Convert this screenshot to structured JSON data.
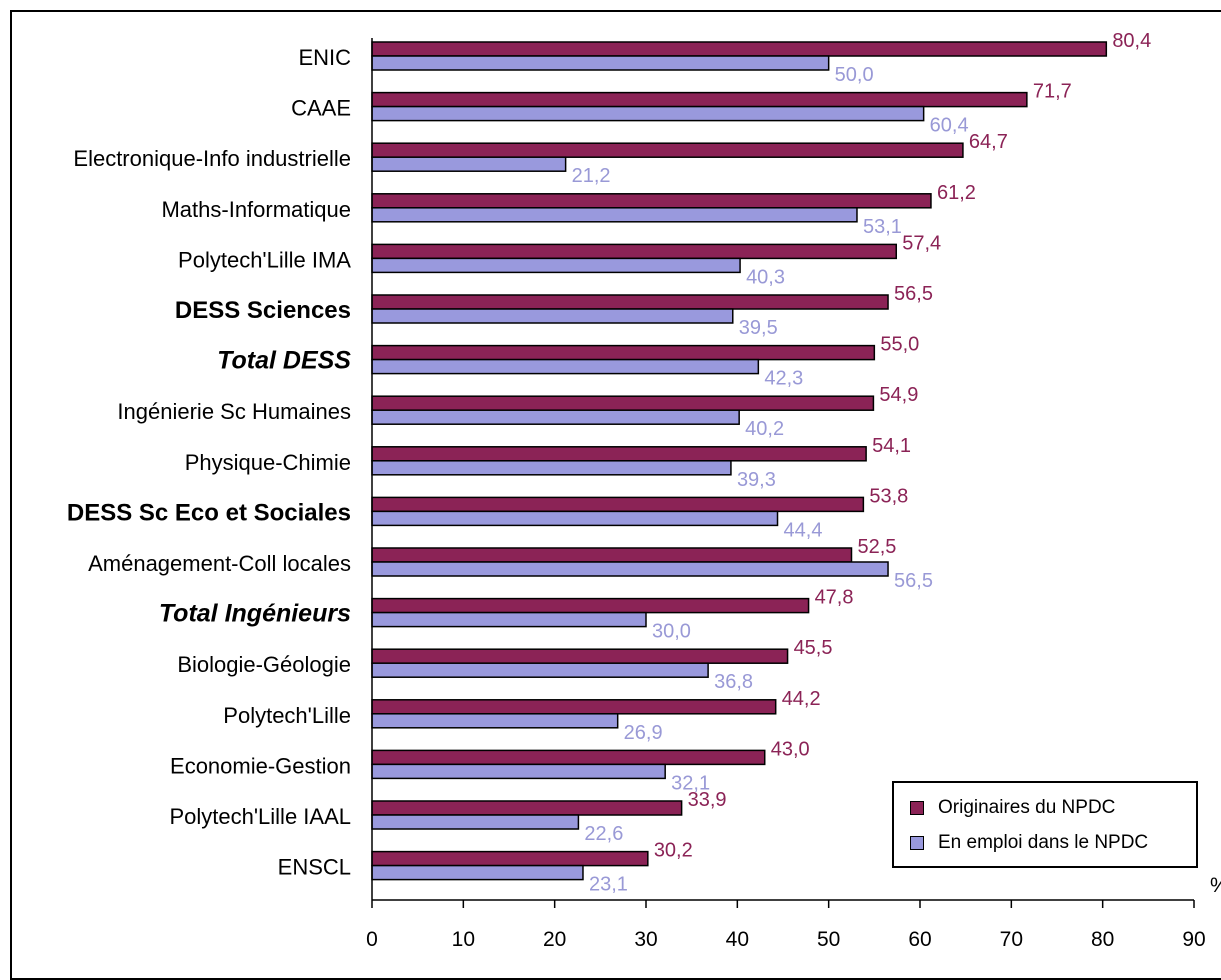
{
  "chart_data": {
    "type": "bar",
    "orientation": "horizontal",
    "categories": [
      "ENIC",
      "CAAE",
      "Electronique-Info industrielle",
      "Maths-Informatique",
      "Polytech'Lille IMA",
      "DESS Sciences",
      "Total DESS",
      "Ingénierie Sc Humaines",
      "Physique-Chimie",
      "DESS Sc Eco et Sociales",
      "Aménagement-Coll locales",
      "Total Ingénieurs",
      "Biologie-Géologie",
      "Polytech'Lille",
      "Economie-Gestion",
      "Polytech'Lille IAAL",
      "ENSCL"
    ],
    "category_styles": [
      "normal",
      "normal",
      "normal",
      "normal",
      "normal",
      "bold",
      "bolditalic",
      "normal",
      "normal",
      "bold",
      "normal",
      "bolditalic",
      "normal",
      "normal",
      "normal",
      "normal",
      "normal"
    ],
    "series": [
      {
        "name": "Originaires du NPDC",
        "color": "#8b2356",
        "label_color": "#8b2356",
        "values": [
          80.4,
          71.7,
          64.7,
          61.2,
          57.4,
          56.5,
          55.0,
          54.9,
          54.1,
          53.8,
          52.5,
          47.8,
          45.5,
          44.2,
          43.0,
          33.9,
          30.2
        ],
        "labels": [
          "80,4",
          "71,7",
          "64,7",
          "61,2",
          "57,4",
          "56,5",
          "55,0",
          "54,9",
          "54,1",
          "53,8",
          "52,5",
          "47,8",
          "45,5",
          "44,2",
          "43,0",
          "33,9",
          "30,2"
        ]
      },
      {
        "name": "En emploi dans le NPDC",
        "color": "#9999dd",
        "label_color": "#9999d6",
        "values": [
          50.0,
          60.4,
          21.2,
          53.1,
          40.3,
          39.5,
          42.3,
          40.2,
          39.3,
          44.4,
          56.5,
          30.0,
          36.8,
          26.9,
          32.1,
          22.6,
          23.1
        ],
        "labels": [
          "50,0",
          "60,4",
          "21,2",
          "53,1",
          "40,3",
          "39,5",
          "42,3",
          "40,2",
          "39,3",
          "44,4",
          "56,5",
          "30,0",
          "36,8",
          "26,9",
          "32,1",
          "22,6",
          "23,1"
        ]
      }
    ],
    "xlim": [
      0,
      90
    ],
    "x_ticks": [
      "0",
      "10",
      "20",
      "30",
      "40",
      "50",
      "60",
      "70",
      "80",
      "90"
    ],
    "x_unit": "%",
    "grid": false,
    "legend_position": "bottom-right"
  }
}
